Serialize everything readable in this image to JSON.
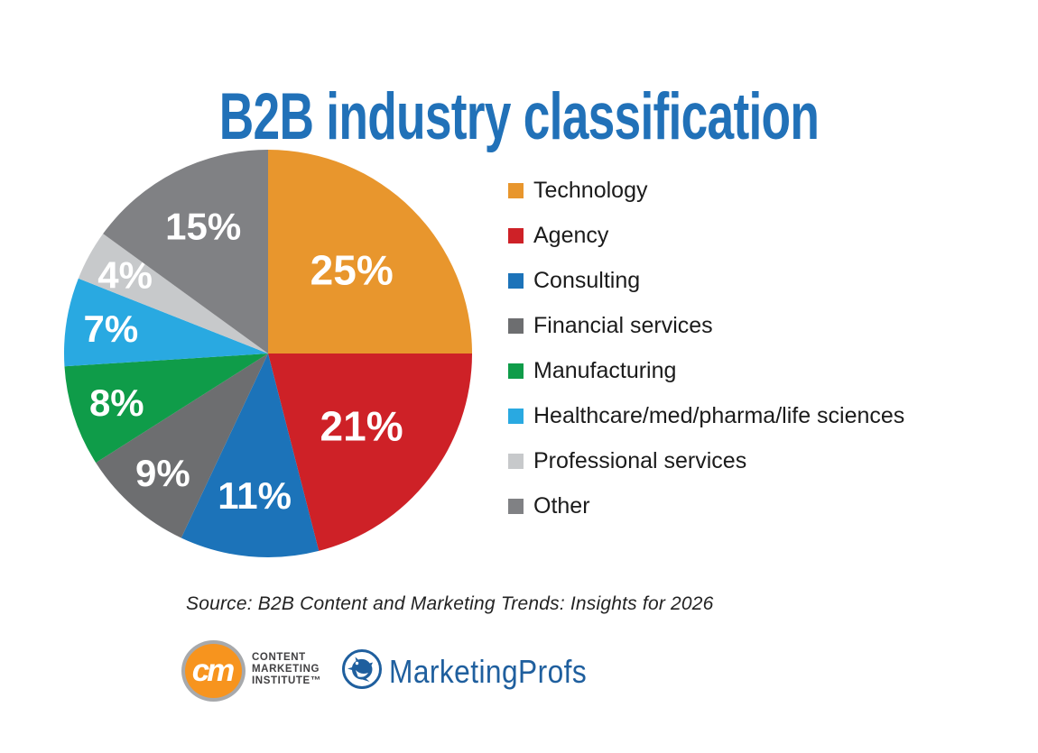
{
  "title": "B2B industry classification",
  "colors": {
    "title_blue": "#2171B8",
    "legend_text": "#1B1B1B",
    "pie_label_text": "#FFFFFF"
  },
  "chart_data": {
    "type": "pie",
    "title": "B2B industry classification",
    "start_angle_deg": 0,
    "direction": "clockwise",
    "legend_position": "right",
    "grid": false,
    "slices": [
      {
        "label": "Technology",
        "value": 25,
        "display": "25%",
        "color": "#E8962D"
      },
      {
        "label": "Agency",
        "value": 21,
        "display": "21%",
        "color": "#CE2127"
      },
      {
        "label": "Consulting",
        "value": 11,
        "display": "11%",
        "color": "#1C73B9"
      },
      {
        "label": "Financial services",
        "value": 9,
        "display": "9%",
        "color": "#6D6E70"
      },
      {
        "label": "Manufacturing",
        "value": 8,
        "display": "8%",
        "color": "#0F9C49"
      },
      {
        "label": "Healthcare/med/pharma/life sciences",
        "value": 7,
        "display": "7%",
        "color": "#29A9E1"
      },
      {
        "label": "Professional services",
        "value": 4,
        "display": "4%",
        "color": "#C7C9CB"
      },
      {
        "label": "Other",
        "value": 15,
        "display": "15%",
        "color": "#808184"
      }
    ]
  },
  "source": "Source: B2B Content and Marketing Trends: Insights for 2026",
  "footer": {
    "cmi_logo": {
      "monogram": "cm",
      "lines": [
        "CONTENT",
        "MARKETING",
        "INSTITUTE™"
      ],
      "orange": "#F7941E",
      "ring_gray": "#A7A9AC",
      "text_color": "#414042"
    },
    "marketingprofs_logo": {
      "text": "MarketingProfs",
      "blue": "#1F5F9E",
      "icon": "dove-icon"
    }
  }
}
